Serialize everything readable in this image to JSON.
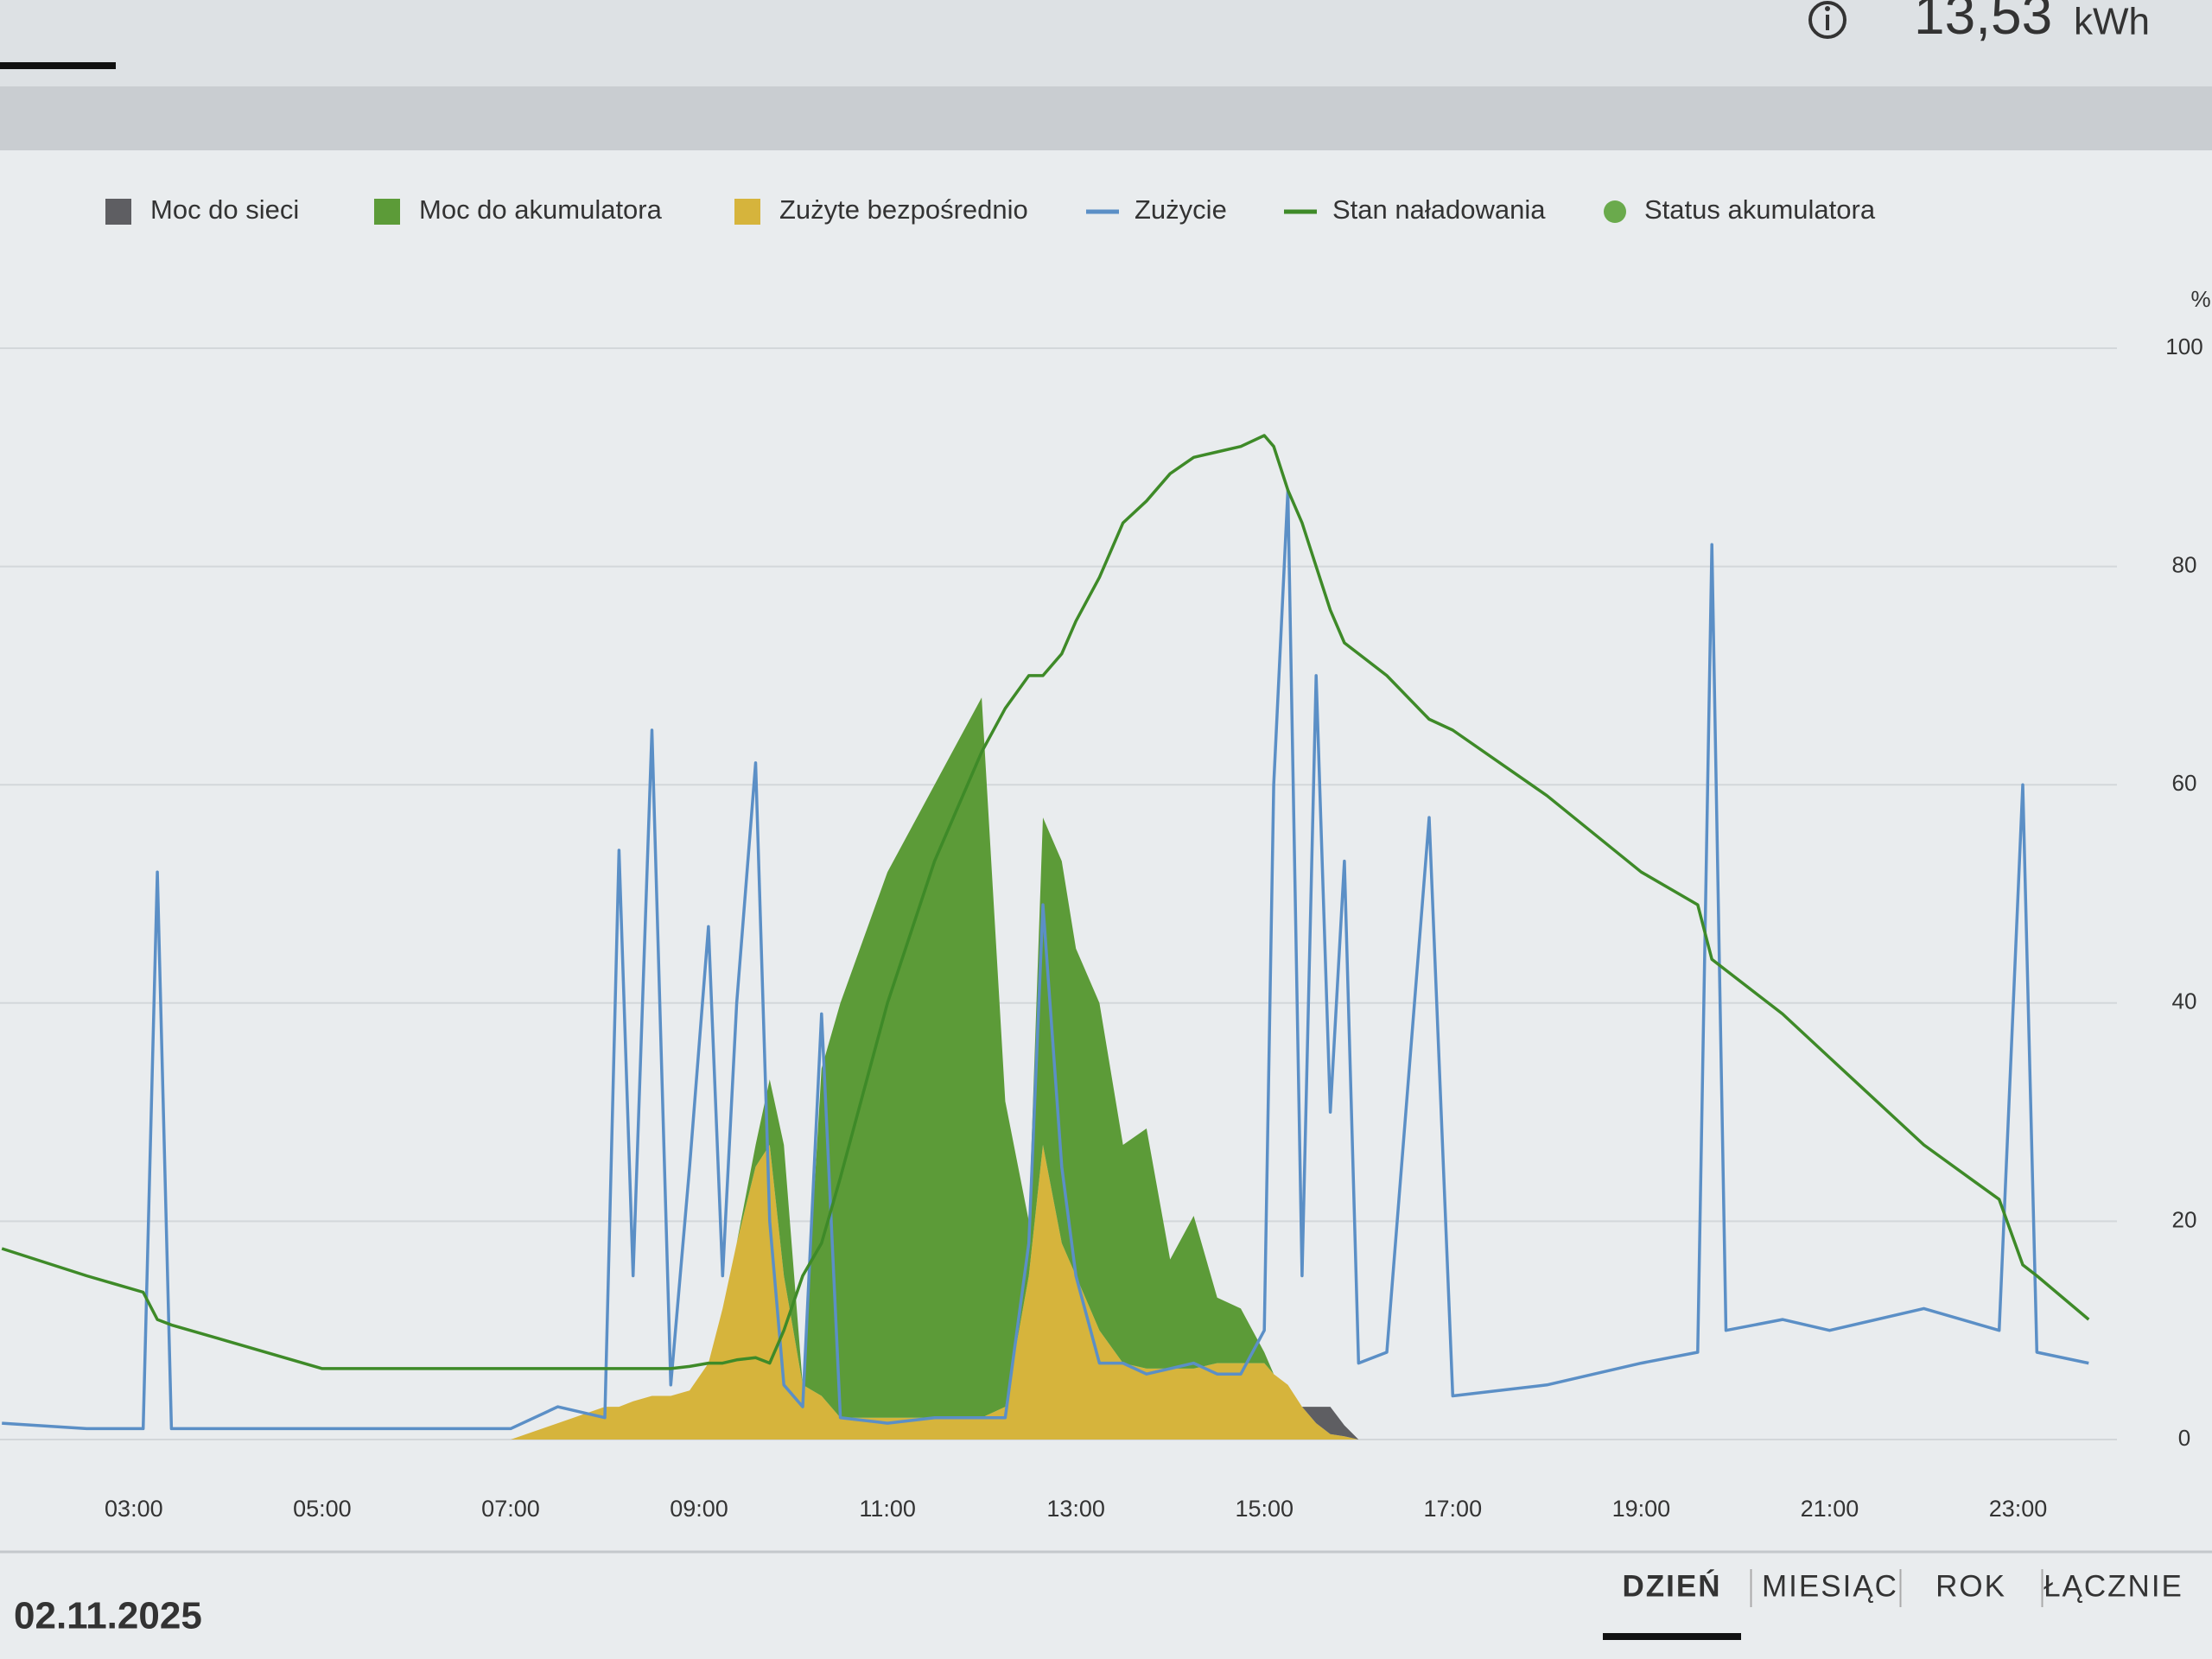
{
  "header": {
    "value": "13,53",
    "unit": "kWh"
  },
  "chart_data": {
    "type": "stacked-area-line",
    "y_unit": "%",
    "x": [
      1.6,
      2.5,
      3.1,
      3.25,
      3.4,
      4,
      5,
      6,
      7,
      7.5,
      8,
      8.15,
      8.3,
      8.5,
      8.7,
      8.9,
      9.1,
      9.25,
      9.4,
      9.6,
      9.75,
      9.9,
      10.1,
      10.3,
      10.5,
      11,
      11.5,
      12,
      12.25,
      12.5,
      12.65,
      12.85,
      13,
      13.25,
      13.5,
      13.75,
      14,
      14.25,
      14.5,
      14.75,
      15,
      15.1,
      15.25,
      15.4,
      15.55,
      15.7,
      15.85,
      16,
      16.3,
      16.75,
      17,
      18,
      19,
      19.6,
      19.75,
      19.9,
      20.5,
      21,
      22,
      22.8,
      23.05,
      23.2,
      23.75
    ],
    "xlim": [
      1.58,
      24.05
    ],
    "xticks": [
      {
        "value": 3,
        "label": "03:00"
      },
      {
        "value": 5,
        "label": "05:00"
      },
      {
        "value": 7,
        "label": "07:00"
      },
      {
        "value": 9,
        "label": "09:00"
      },
      {
        "value": 11,
        "label": "11:00"
      },
      {
        "value": 13,
        "label": "13:00"
      },
      {
        "value": 15,
        "label": "15:00"
      },
      {
        "value": 17,
        "label": "17:00"
      },
      {
        "value": 19,
        "label": "19:00"
      },
      {
        "value": 21,
        "label": "21:00"
      },
      {
        "value": 23,
        "label": "23:00"
      }
    ],
    "ylim": [
      0,
      100
    ],
    "yticks": [
      0,
      20,
      40,
      60,
      80,
      100
    ],
    "grid": true,
    "series": [
      {
        "name": "Moc do sieci",
        "color": "#5e5e62",
        "kind": "area",
        "stack_order": 2,
        "values": [
          0,
          0,
          0,
          0,
          0,
          0,
          0,
          0,
          0,
          0,
          0,
          0,
          0,
          0,
          0,
          0,
          0,
          0,
          0,
          0,
          0,
          0,
          0,
          0,
          0,
          0,
          0,
          0,
          0,
          0,
          0,
          0,
          0,
          0,
          0,
          0,
          0,
          0,
          0,
          0,
          0,
          0,
          0,
          0,
          1.5,
          2.5,
          1,
          0,
          0,
          0,
          0,
          0,
          0,
          0,
          0,
          0,
          0,
          0,
          0,
          0,
          0,
          0,
          0
        ]
      },
      {
        "name": "Moc do akumulatora",
        "color": "#5c9b38",
        "kind": "area",
        "stack_order": 1,
        "values": [
          0,
          0,
          0,
          0,
          0,
          0,
          0,
          0,
          0,
          0,
          0,
          0,
          0,
          0,
          0,
          0,
          0,
          0,
          0,
          2,
          6,
          12,
          0,
          30,
          38,
          50,
          58,
          66,
          28,
          5,
          30,
          35,
          30,
          30,
          20,
          22,
          10,
          14,
          6,
          5,
          1,
          0,
          0,
          0,
          0,
          0,
          0,
          0,
          0,
          0,
          0,
          0,
          0,
          0,
          0,
          0,
          0,
          0,
          0,
          0,
          0,
          0,
          0
        ]
      },
      {
        "name": "Zużyte bezpośrednio",
        "color": "#d6b43c",
        "kind": "area",
        "stack_order": 0,
        "values": [
          0,
          0,
          0,
          0,
          0,
          0,
          0,
          0,
          0,
          1.5,
          3,
          3,
          3.5,
          4,
          4,
          4.5,
          7,
          12,
          18,
          25,
          27,
          15,
          5,
          4,
          2,
          2,
          2,
          2,
          3,
          15,
          27,
          18,
          15,
          10,
          7,
          6.5,
          6.5,
          6.5,
          7,
          7,
          7,
          6,
          5,
          3,
          1.5,
          0.5,
          0.3,
          0,
          0,
          0,
          0,
          0,
          0,
          0,
          0,
          0,
          0,
          0,
          0,
          0,
          0,
          0,
          0
        ]
      },
      {
        "name": "Zużycie",
        "color": "#5b8fc6",
        "kind": "line",
        "values": [
          1.5,
          1,
          1,
          52,
          1,
          1,
          1,
          1,
          1,
          3,
          2,
          54,
          15,
          65,
          5,
          25,
          47,
          15,
          40,
          62,
          20,
          5,
          3,
          39,
          2,
          1.5,
          2,
          2,
          2,
          18,
          49,
          25,
          15,
          7,
          7,
          6,
          6.5,
          7,
          6,
          6,
          10,
          60,
          87,
          15,
          70,
          30,
          53,
          7,
          8,
          57,
          4,
          5,
          7,
          8,
          82,
          10,
          11,
          10,
          12,
          10,
          60,
          8,
          7
        ]
      },
      {
        "name": "Stan naładowania",
        "color": "#3e8a28",
        "kind": "line",
        "values": [
          17.5,
          15,
          13.5,
          11,
          10.5,
          9,
          6.5,
          6.5,
          6.5,
          6.5,
          6.5,
          6.5,
          6.5,
          6.5,
          6.5,
          6.7,
          7,
          7,
          7.3,
          7.5,
          7,
          10,
          15,
          18,
          24,
          40,
          53,
          63,
          67,
          70,
          70,
          72,
          75,
          79,
          84,
          86,
          88.5,
          90,
          90.5,
          91,
          92,
          91,
          87,
          84,
          80,
          76,
          73,
          72,
          70,
          66,
          65,
          59,
          52,
          49,
          44,
          43,
          39,
          35,
          27,
          22,
          16,
          15,
          11
        ]
      }
    ],
    "status_legend": {
      "name": "Status akumulatora",
      "color": "#6aaa4c"
    }
  },
  "footer": {
    "date": "02.11.2025",
    "range_buttons": [
      "DZIEŃ",
      "MIESIĄC",
      "ROK",
      "ŁĄCZNIE"
    ],
    "active": 0
  }
}
